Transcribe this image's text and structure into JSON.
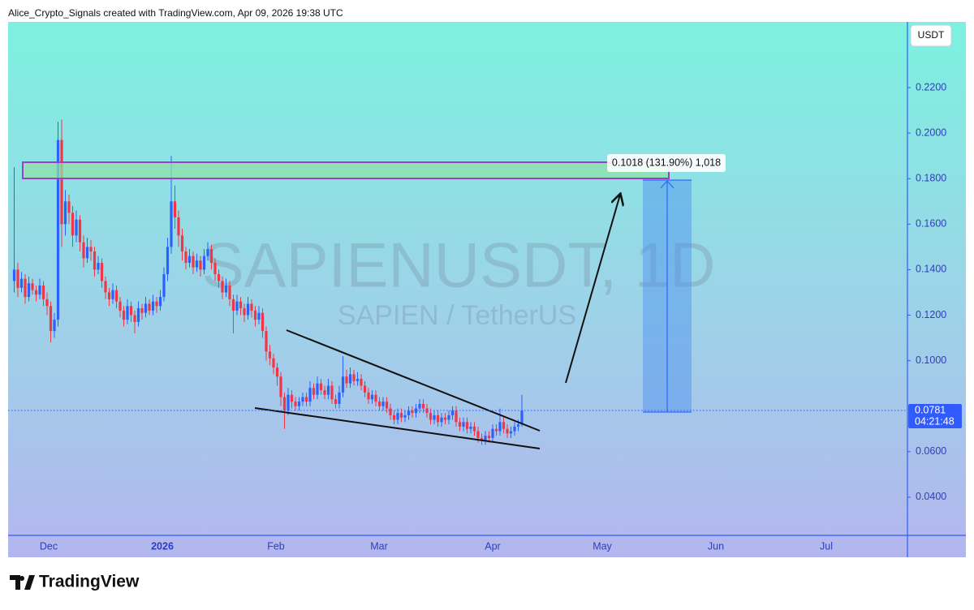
{
  "chart_data": {
    "type": "candlestick",
    "header": "Alice_Crypto_Signals created with TradingView.com, Apr 09, 2026 19:38 UTC",
    "watermark_title": "SAPIENUSDT, 1D",
    "watermark_subtitle": "SAPIEN / TetherUS",
    "currency": "USDT",
    "last_price": {
      "value": 0.0781,
      "label": "0.0781"
    },
    "countdown": "04:21:48",
    "measure_label": "0.1018 (131.90%) 1,018",
    "brand": "TradingView",
    "up_color": "#2962ff",
    "down_color": "#f23645",
    "ylim": [
      0.0232,
      0.2489
    ],
    "yticks": [
      {
        "value": 0.04,
        "label": "0.0400"
      },
      {
        "value": 0.06,
        "label": "0.0600"
      },
      {
        "value": 0.1,
        "label": "0.1000"
      },
      {
        "value": 0.12,
        "label": "0.1200"
      },
      {
        "value": 0.14,
        "label": "0.1400"
      },
      {
        "value": 0.16,
        "label": "0.1600"
      },
      {
        "value": 0.18,
        "label": "0.1800"
      },
      {
        "value": 0.2,
        "label": "0.2000"
      },
      {
        "value": 0.22,
        "label": "0.2200"
      }
    ],
    "xtick_labels": [
      "Dec",
      "2026",
      "Feb",
      "Mar",
      "Apr",
      "May",
      "Jun",
      "Jul"
    ],
    "ohlc": [
      [
        0.135,
        0.185,
        0.13,
        0.14
      ],
      [
        0.14,
        0.143,
        0.128,
        0.132
      ],
      [
        0.132,
        0.139,
        0.13,
        0.136
      ],
      [
        0.136,
        0.138,
        0.125,
        0.128
      ],
      [
        0.128,
        0.137,
        0.126,
        0.134
      ],
      [
        0.134,
        0.136,
        0.129,
        0.131
      ],
      [
        0.131,
        0.133,
        0.126,
        0.129
      ],
      [
        0.129,
        0.136,
        0.127,
        0.133
      ],
      [
        0.133,
        0.135,
        0.124,
        0.127
      ],
      [
        0.127,
        0.13,
        0.12,
        0.124
      ],
      [
        0.124,
        0.126,
        0.108,
        0.113
      ],
      [
        0.113,
        0.121,
        0.11,
        0.118
      ],
      [
        0.118,
        0.205,
        0.115,
        0.197
      ],
      [
        0.197,
        0.206,
        0.15,
        0.16
      ],
      [
        0.16,
        0.175,
        0.155,
        0.17
      ],
      [
        0.17,
        0.173,
        0.16,
        0.165
      ],
      [
        0.165,
        0.168,
        0.15,
        0.155
      ],
      [
        0.155,
        0.166,
        0.152,
        0.162
      ],
      [
        0.162,
        0.164,
        0.148,
        0.152
      ],
      [
        0.152,
        0.155,
        0.141,
        0.145
      ],
      [
        0.145,
        0.154,
        0.143,
        0.15
      ],
      [
        0.15,
        0.153,
        0.144,
        0.148
      ],
      [
        0.148,
        0.15,
        0.137,
        0.14
      ],
      [
        0.14,
        0.146,
        0.138,
        0.143
      ],
      [
        0.143,
        0.145,
        0.132,
        0.135
      ],
      [
        0.135,
        0.137,
        0.127,
        0.13
      ],
      [
        0.13,
        0.132,
        0.124,
        0.127
      ],
      [
        0.127,
        0.134,
        0.125,
        0.131
      ],
      [
        0.131,
        0.133,
        0.123,
        0.126
      ],
      [
        0.126,
        0.128,
        0.119,
        0.122
      ],
      [
        0.122,
        0.124,
        0.115,
        0.118
      ],
      [
        0.118,
        0.127,
        0.116,
        0.124
      ],
      [
        0.124,
        0.126,
        0.117,
        0.12
      ],
      [
        0.12,
        0.122,
        0.112,
        0.117
      ],
      [
        0.117,
        0.126,
        0.115,
        0.123
      ],
      [
        0.123,
        0.125,
        0.118,
        0.121
      ],
      [
        0.121,
        0.128,
        0.119,
        0.125
      ],
      [
        0.125,
        0.127,
        0.12,
        0.122
      ],
      [
        0.122,
        0.129,
        0.12,
        0.126
      ],
      [
        0.126,
        0.128,
        0.121,
        0.124
      ],
      [
        0.124,
        0.131,
        0.122,
        0.128
      ],
      [
        0.128,
        0.141,
        0.126,
        0.138
      ],
      [
        0.138,
        0.154,
        0.135,
        0.15
      ],
      [
        0.15,
        0.19,
        0.147,
        0.17
      ],
      [
        0.17,
        0.177,
        0.158,
        0.163
      ],
      [
        0.163,
        0.166,
        0.15,
        0.155
      ],
      [
        0.155,
        0.158,
        0.144,
        0.148
      ],
      [
        0.148,
        0.15,
        0.14,
        0.143
      ],
      [
        0.143,
        0.149,
        0.141,
        0.146
      ],
      [
        0.146,
        0.148,
        0.138,
        0.141
      ],
      [
        0.141,
        0.147,
        0.139,
        0.144
      ],
      [
        0.144,
        0.146,
        0.137,
        0.14
      ],
      [
        0.14,
        0.149,
        0.138,
        0.146
      ],
      [
        0.146,
        0.152,
        0.144,
        0.149
      ],
      [
        0.149,
        0.151,
        0.14,
        0.143
      ],
      [
        0.143,
        0.145,
        0.135,
        0.138
      ],
      [
        0.138,
        0.14,
        0.132,
        0.135
      ],
      [
        0.135,
        0.137,
        0.127,
        0.13
      ],
      [
        0.13,
        0.136,
        0.128,
        0.133
      ],
      [
        0.133,
        0.135,
        0.124,
        0.127
      ],
      [
        0.127,
        0.129,
        0.112,
        0.122
      ],
      [
        0.122,
        0.129,
        0.12,
        0.126
      ],
      [
        0.126,
        0.128,
        0.12,
        0.123
      ],
      [
        0.123,
        0.125,
        0.117,
        0.12
      ],
      [
        0.12,
        0.128,
        0.118,
        0.125
      ],
      [
        0.125,
        0.127,
        0.119,
        0.122
      ],
      [
        0.122,
        0.124,
        0.115,
        0.118
      ],
      [
        0.118,
        0.124,
        0.116,
        0.121
      ],
      [
        0.121,
        0.123,
        0.11,
        0.113
      ],
      [
        0.113,
        0.115,
        0.1,
        0.104
      ],
      [
        0.104,
        0.107,
        0.098,
        0.101
      ],
      [
        0.101,
        0.103,
        0.094,
        0.097
      ],
      [
        0.097,
        0.099,
        0.089,
        0.093
      ],
      [
        0.093,
        0.095,
        0.08,
        0.084
      ],
      [
        0.084,
        0.086,
        0.07,
        0.078
      ],
      [
        0.078,
        0.088,
        0.076,
        0.085
      ],
      [
        0.085,
        0.087,
        0.079,
        0.082
      ],
      [
        0.082,
        0.084,
        0.078,
        0.08
      ],
      [
        0.08,
        0.084,
        0.078,
        0.082
      ],
      [
        0.082,
        0.086,
        0.08,
        0.084
      ],
      [
        0.084,
        0.086,
        0.08,
        0.082
      ],
      [
        0.082,
        0.091,
        0.08,
        0.088
      ],
      [
        0.088,
        0.09,
        0.083,
        0.085
      ],
      [
        0.085,
        0.093,
        0.083,
        0.09
      ],
      [
        0.09,
        0.092,
        0.085,
        0.087
      ],
      [
        0.087,
        0.089,
        0.083,
        0.085
      ],
      [
        0.085,
        0.092,
        0.083,
        0.089
      ],
      [
        0.089,
        0.091,
        0.081,
        0.083
      ],
      [
        0.083,
        0.085,
        0.079,
        0.081
      ],
      [
        0.081,
        0.089,
        0.079,
        0.086
      ],
      [
        0.086,
        0.102,
        0.084,
        0.093
      ],
      [
        0.093,
        0.096,
        0.088,
        0.09
      ],
      [
        0.09,
        0.097,
        0.088,
        0.094
      ],
      [
        0.094,
        0.096,
        0.089,
        0.091
      ],
      [
        0.091,
        0.095,
        0.089,
        0.092
      ],
      [
        0.092,
        0.094,
        0.087,
        0.089
      ],
      [
        0.089,
        0.091,
        0.084,
        0.086
      ],
      [
        0.086,
        0.088,
        0.081,
        0.083
      ],
      [
        0.083,
        0.087,
        0.081,
        0.085
      ],
      [
        0.085,
        0.087,
        0.08,
        0.082
      ],
      [
        0.082,
        0.084,
        0.078,
        0.08
      ],
      [
        0.08,
        0.084,
        0.078,
        0.082
      ],
      [
        0.082,
        0.084,
        0.077,
        0.079
      ],
      [
        0.079,
        0.081,
        0.074,
        0.076
      ],
      [
        0.076,
        0.078,
        0.072,
        0.074
      ],
      [
        0.074,
        0.079,
        0.072,
        0.077
      ],
      [
        0.077,
        0.079,
        0.073,
        0.075
      ],
      [
        0.075,
        0.078,
        0.073,
        0.076
      ],
      [
        0.076,
        0.08,
        0.074,
        0.078
      ],
      [
        0.078,
        0.08,
        0.075,
        0.077
      ],
      [
        0.077,
        0.081,
        0.075,
        0.079
      ],
      [
        0.079,
        0.083,
        0.077,
        0.081
      ],
      [
        0.081,
        0.083,
        0.077,
        0.079
      ],
      [
        0.079,
        0.081,
        0.075,
        0.077
      ],
      [
        0.077,
        0.079,
        0.072,
        0.074
      ],
      [
        0.074,
        0.078,
        0.072,
        0.076
      ],
      [
        0.076,
        0.078,
        0.071,
        0.073
      ],
      [
        0.073,
        0.077,
        0.071,
        0.075
      ],
      [
        0.075,
        0.077,
        0.072,
        0.074
      ],
      [
        0.074,
        0.078,
        0.072,
        0.076
      ],
      [
        0.076,
        0.08,
        0.074,
        0.078
      ],
      [
        0.078,
        0.08,
        0.071,
        0.073
      ],
      [
        0.073,
        0.075,
        0.069,
        0.071
      ],
      [
        0.071,
        0.075,
        0.069,
        0.073
      ],
      [
        0.073,
        0.075,
        0.068,
        0.07
      ],
      [
        0.07,
        0.073,
        0.068,
        0.071
      ],
      [
        0.071,
        0.073,
        0.067,
        0.069
      ],
      [
        0.069,
        0.071,
        0.064,
        0.066
      ],
      [
        0.066,
        0.068,
        0.063,
        0.065
      ],
      [
        0.065,
        0.069,
        0.063,
        0.067
      ],
      [
        0.067,
        0.069,
        0.064,
        0.066
      ],
      [
        0.066,
        0.072,
        0.064,
        0.07
      ],
      [
        0.07,
        0.072,
        0.067,
        0.069
      ],
      [
        0.069,
        0.079,
        0.067,
        0.073
      ],
      [
        0.073,
        0.075,
        0.068,
        0.07
      ],
      [
        0.07,
        0.072,
        0.066,
        0.068
      ],
      [
        0.068,
        0.071,
        0.066,
        0.069
      ],
      [
        0.069,
        0.073,
        0.067,
        0.071
      ],
      [
        0.071,
        0.074,
        0.069,
        0.072
      ],
      [
        0.072,
        0.085,
        0.071,
        0.0781
      ]
    ]
  }
}
